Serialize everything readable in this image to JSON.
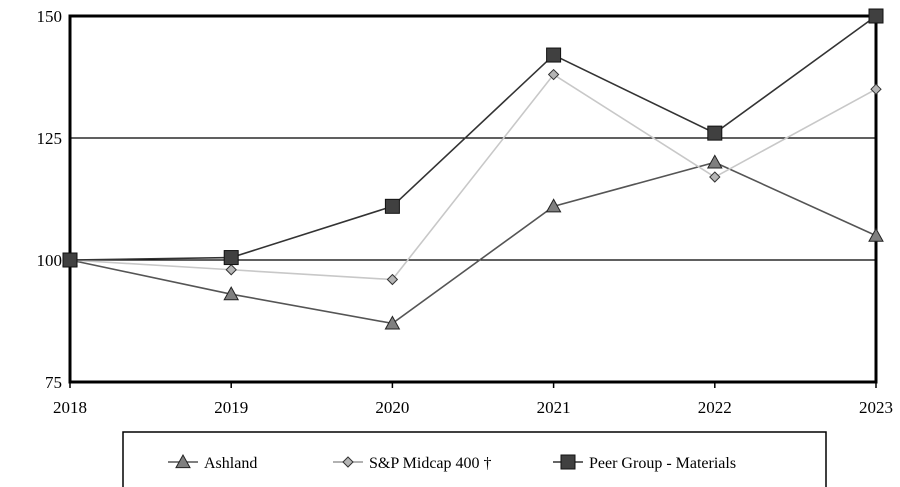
{
  "chart_data": {
    "type": "line",
    "title": "",
    "xlabel": "",
    "ylabel": "",
    "categories": [
      "2018",
      "2019",
      "2020",
      "2021",
      "2022",
      "2023"
    ],
    "ylim": [
      75,
      150
    ],
    "yticks": [
      75,
      100,
      125,
      150
    ],
    "grid": "horizontal",
    "legend_position": "bottom",
    "series": [
      {
        "name": "Ashland",
        "values": [
          100,
          93,
          87,
          111,
          120,
          105
        ],
        "color": "#555555",
        "marker": "triangle",
        "marker_fill": "#7f7f7f"
      },
      {
        "name": "S&P Midcap 400 †",
        "values": [
          100,
          98,
          96,
          138,
          117,
          135
        ],
        "color": "#c8c8c8",
        "marker": "diamond",
        "marker_fill": "#b5b5b5"
      },
      {
        "name": "Peer Group - Materials",
        "values": [
          100,
          100.5,
          111,
          142,
          126,
          150
        ],
        "color": "#333333",
        "marker": "square",
        "marker_fill": "#404040"
      }
    ]
  }
}
